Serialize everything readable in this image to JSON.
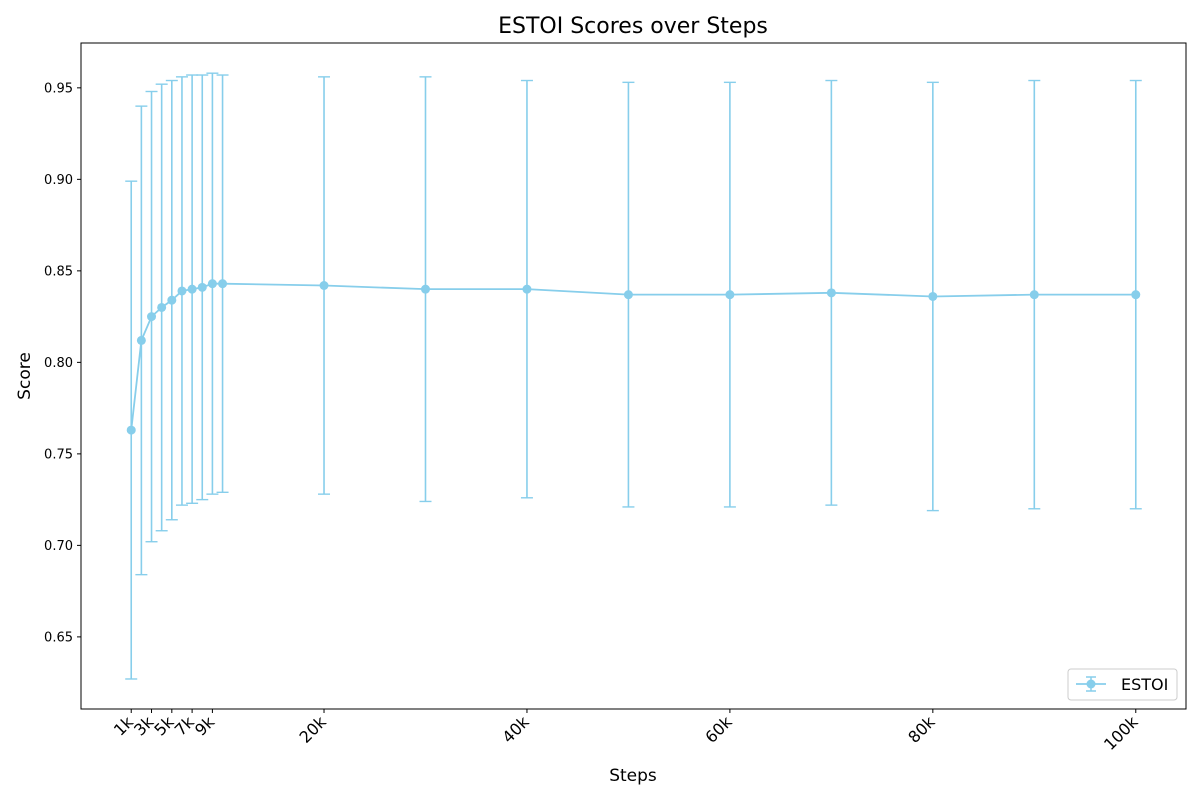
{
  "chart_data": {
    "type": "line",
    "title": "ESTOI Scores over Steps",
    "xlabel": "Steps",
    "ylabel": "Score",
    "x": [
      1000,
      2000,
      3000,
      4000,
      5000,
      6000,
      7000,
      8000,
      9000,
      10000,
      20000,
      30000,
      40000,
      50000,
      60000,
      70000,
      80000,
      90000,
      100000
    ],
    "series": [
      {
        "name": "ESTOI",
        "color": "#87CEEB",
        "values": [
          0.763,
          0.812,
          0.825,
          0.83,
          0.834,
          0.839,
          0.84,
          0.841,
          0.843,
          0.843,
          0.842,
          0.84,
          0.84,
          0.837,
          0.837,
          0.838,
          0.836,
          0.837,
          0.837
        ],
        "error_low": [
          0.627,
          0.684,
          0.702,
          0.708,
          0.714,
          0.722,
          0.723,
          0.725,
          0.728,
          0.729,
          0.728,
          0.724,
          0.726,
          0.721,
          0.721,
          0.722,
          0.719,
          0.72,
          0.72
        ],
        "error_high": [
          0.899,
          0.94,
          0.948,
          0.952,
          0.954,
          0.956,
          0.957,
          0.957,
          0.958,
          0.957,
          0.956,
          0.956,
          0.954,
          0.953,
          0.953,
          0.954,
          0.953,
          0.954,
          0.954
        ]
      }
    ],
    "xticks": [
      1000,
      3000,
      5000,
      7000,
      9000,
      20000,
      40000,
      60000,
      80000,
      100000
    ],
    "xtick_labels": [
      "1k",
      "3k",
      "5k",
      "7k",
      "9k",
      "20k",
      "40k",
      "60k",
      "80k",
      "100k"
    ],
    "yticks": [
      0.65,
      0.7,
      0.75,
      0.8,
      0.85,
      0.9,
      0.95
    ],
    "ytick_labels": [
      "0.65",
      "0.70",
      "0.75",
      "0.80",
      "0.85",
      "0.90",
      "0.95"
    ],
    "xlim": [
      -3950,
      104950
    ],
    "ylim": [
      0.6106,
      0.9745
    ],
    "grid": false,
    "legend_position": "lower-right"
  }
}
